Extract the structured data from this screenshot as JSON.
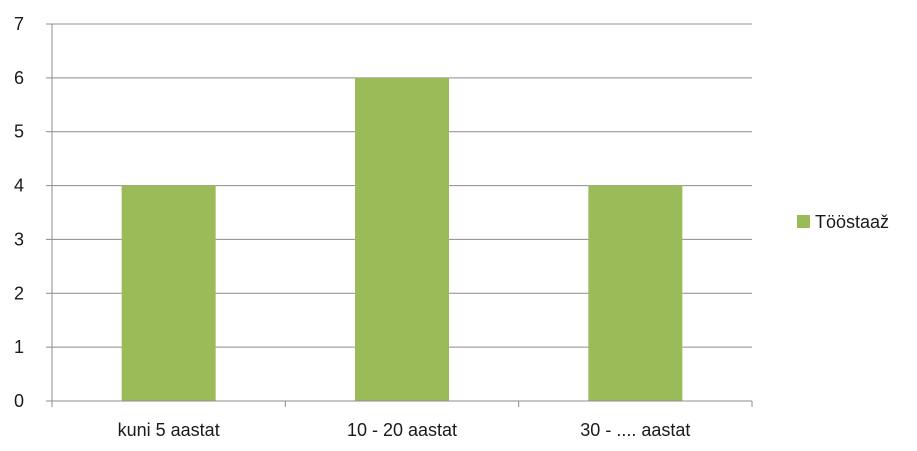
{
  "chart_data": {
    "type": "bar",
    "categories": [
      "kuni 5 aastat",
      "10 - 20 aastat",
      "30 - .... aastat"
    ],
    "series": [
      {
        "name": "Tööstaaž",
        "values": [
          4,
          6,
          4
        ],
        "color": "#9bbb59"
      }
    ],
    "title": "",
    "xlabel": "",
    "ylabel": "",
    "ylim": [
      0,
      7
    ],
    "yticks": [
      "0",
      "1",
      "2",
      "3",
      "4",
      "5",
      "6",
      "7"
    ],
    "grid": true,
    "legend_position": "right"
  }
}
